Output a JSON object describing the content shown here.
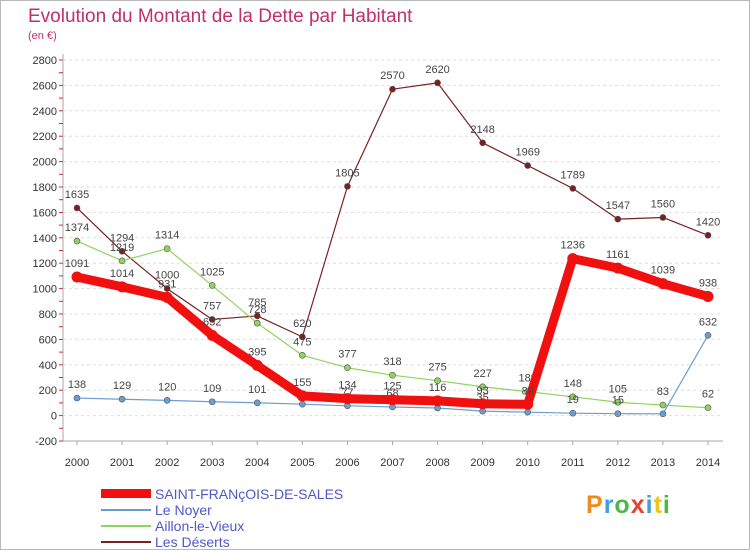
{
  "title": "Evolution du Montant de la Dette par Habitant",
  "subtitle": "(en €)",
  "logo": {
    "text": "Proxiti",
    "colors": [
      "#f08a1c",
      "#3f9fd8",
      "#4cb848",
      "#e8432e",
      "#3f9fd8",
      "#f0c419",
      "#4cb848"
    ]
  },
  "chart_data": {
    "type": "line",
    "x": [
      "2000",
      "2001",
      "2002",
      "2003",
      "2004",
      "2005",
      "2006",
      "2007",
      "2008",
      "2009",
      "2010",
      "2011",
      "2012",
      "2013",
      "2014"
    ],
    "ylim": [
      -200,
      2800
    ],
    "yticks": [
      "-200",
      "0",
      "200",
      "400",
      "600",
      "800",
      "1000",
      "1200",
      "1400",
      "1600",
      "1800",
      "2000",
      "2200",
      "2400",
      "2600",
      "2800"
    ],
    "grid": "horizontal dashed",
    "legend_position": "bottom-left",
    "series": [
      {
        "name": "Les Déserts",
        "color": "#7a2020",
        "values": [
          1635,
          1294,
          1000,
          757,
          785,
          620,
          1805,
          2570,
          2620,
          2148,
          1969,
          1789,
          1547,
          1560,
          1420
        ],
        "labels": [
          "1635",
          "1294",
          "1000",
          "757",
          "785",
          "620",
          "1805",
          "2570",
          "2620",
          "2148",
          "1969",
          "1789",
          "1547",
          "1560",
          "1420"
        ]
      },
      {
        "name": "Aillon-le-Vieux",
        "color": "#8fd45e",
        "values": [
          1374,
          1219,
          1314,
          1025,
          728,
          475,
          377,
          318,
          275,
          227,
          189,
          148,
          105,
          83,
          62
        ],
        "labels": [
          "1374",
          "1219",
          "1314",
          "1025",
          "728",
          "475",
          "377",
          "318",
          "275",
          "227",
          "189",
          "148",
          "105",
          "83",
          "62"
        ]
      },
      {
        "name": "Le Noyer",
        "color": "#6a9ecf",
        "values": [
          138,
          129,
          120,
          109,
          101,
          90,
          77,
          68,
          60,
          35,
          27,
          19,
          15,
          14,
          632
        ],
        "labels": [
          "138",
          "129",
          "120",
          "109",
          "101",
          "",
          "77",
          "68",
          "",
          "35",
          "",
          "19",
          "15",
          "",
          "632"
        ]
      },
      {
        "name": "SAINT-FRANçOIS-DE-SALES",
        "color": "#f01010",
        "values": [
          1091,
          1014,
          931,
          632,
          395,
          155,
          134,
          125,
          116,
          93,
          89,
          1236,
          1161,
          1039,
          938
        ],
        "labels": [
          "1091",
          "1014",
          "931",
          "632",
          "395",
          "155",
          "134",
          "125",
          "116",
          "93",
          "89",
          "1236",
          "1161",
          "1039",
          "938"
        ]
      }
    ]
  }
}
